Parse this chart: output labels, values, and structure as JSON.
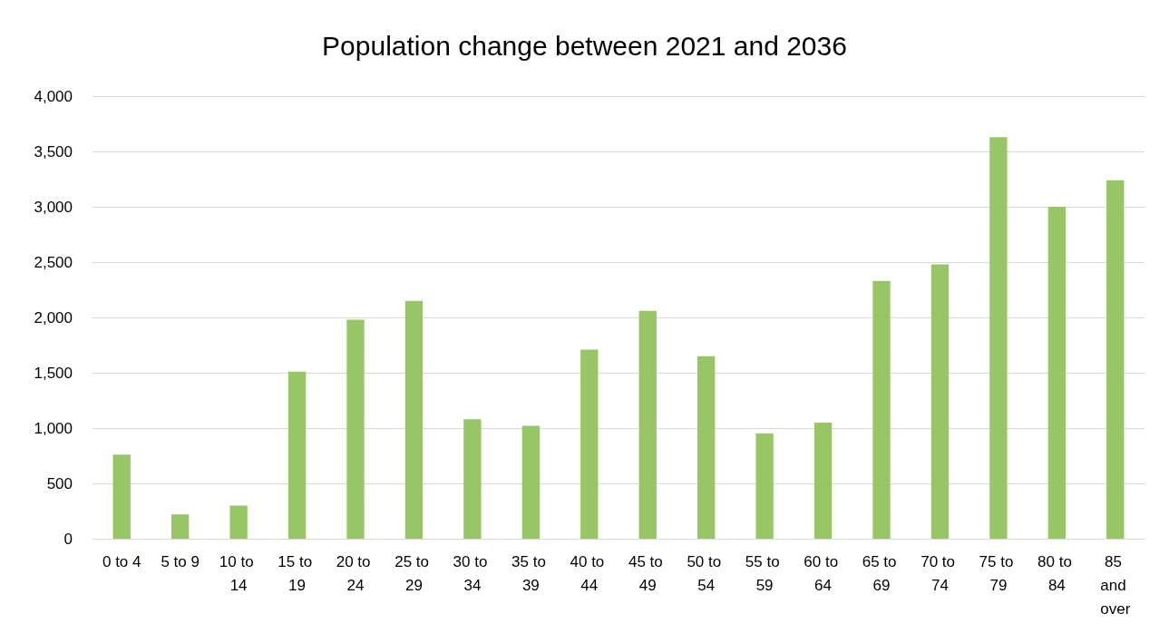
{
  "chart_data": {
    "type": "bar",
    "title": "Population change between 2021 and 2036",
    "categories": [
      "0 to 4",
      "5 to 9",
      "10 to 14",
      "15 to 19",
      "20 to 24",
      "25 to 29",
      "30 to 34",
      "35 to 39",
      "40 to 44",
      "45 to 49",
      "50 to 54",
      "55 to 59",
      "60 to 64",
      "65 to 69",
      "70 to 74",
      "75 to 79",
      "80 to 84",
      "85 and over"
    ],
    "values": [
      760,
      220,
      300,
      1510,
      1980,
      2150,
      1080,
      1020,
      1710,
      2060,
      1650,
      950,
      1050,
      2330,
      2480,
      3630,
      3000,
      3240
    ],
    "color": "#98c666",
    "ylim": [
      0,
      4000
    ],
    "yticks": [
      {
        "value": 0,
        "label": "0"
      },
      {
        "value": 500,
        "label": "500"
      },
      {
        "value": 1000,
        "label": "1,000"
      },
      {
        "value": 1500,
        "label": "1,500"
      },
      {
        "value": 2000,
        "label": "2,000"
      },
      {
        "value": 2500,
        "label": "2,500"
      },
      {
        "value": 3000,
        "label": "3,000"
      },
      {
        "value": 3500,
        "label": "3,500"
      },
      {
        "value": 4000,
        "label": "4,000"
      }
    ],
    "grid": "y"
  }
}
